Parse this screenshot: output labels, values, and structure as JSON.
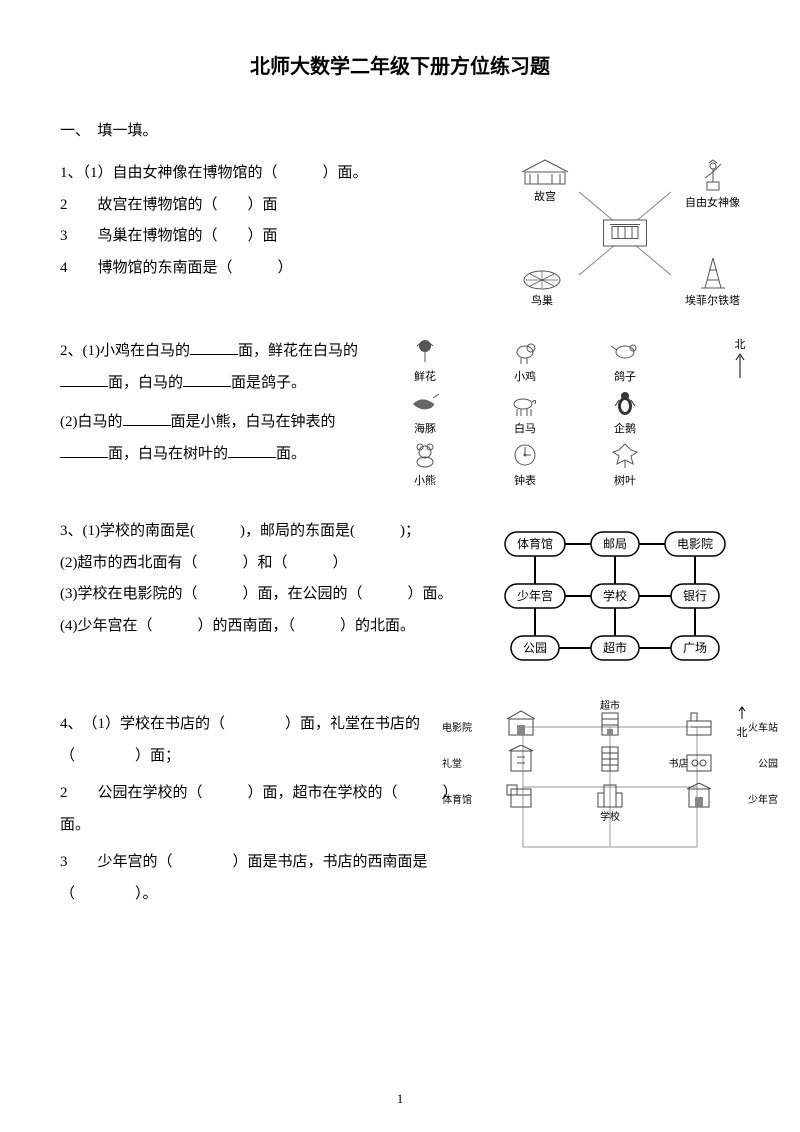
{
  "title": "北师大数学二年级下册方位练习题",
  "section_head": "一、　填一填。",
  "page_number": "1",
  "q1": {
    "l1": "1、（1）自由女神像在博物馆的（　　　）面。",
    "l2": "2　　故宫在博物馆的（　　）面",
    "l3": "3　　鸟巢在博物馆的（　　）面",
    "l4": "4　　博物馆的东南面是（　　　）",
    "fig": {
      "nw": "故宫",
      "ne": "自由女神像",
      "sw": "鸟巢",
      "se": "埃菲尔铁塔"
    }
  },
  "q2": {
    "p1a": "2、(1)小鸡在白马的",
    "p1b": "面，鲜花在白马的",
    "p1c": "面，白马的",
    "p1d": "面是鸽子。",
    "p2a": "(2)白马的",
    "p2b": "面是小熊，白马在钟表的",
    "p2c": "面，白马在树叶的",
    "p2d": "面。",
    "grid": [
      "鲜花",
      "小鸡",
      "鸽子",
      "海豚",
      "白马",
      "企鹅",
      "小熊",
      "钟表",
      "树叶"
    ],
    "north": "北"
  },
  "q3": {
    "l1": "3、(1)学校的南面是(　　　)，邮局的东面是(　　　)；",
    "l2": "(2)超市的西北面有（　　　）和（　　　）",
    "l3": "(3)学校在电影院的（　　　）面，在公园的（　　　）面。",
    "l4": "(4)少年宫在（　　　）的西南面，（　　　）的北面。",
    "nodes": [
      "体育馆",
      "邮局",
      "电影院",
      "少年宫",
      "学校",
      "银行",
      "公园",
      "超市",
      "广场"
    ]
  },
  "q4": {
    "l1a": "4、　（1）学校在书店的（　　　　）面，礼堂在书店的",
    "l1b": "（　　　　）面；",
    "l2": "2　　公园在学校的（　　　）面，超市在学校的（　　　）面。",
    "l3a": " 3　　少年宫的（　　　　）面是书店，书店的西南面是",
    "l3b": "（　　　　）。",
    "labels": [
      "电影院",
      "超市",
      "火车站",
      "礼堂",
      "书店",
      "公园",
      "体育馆",
      "学校",
      "少年宫"
    ],
    "north": "北"
  }
}
